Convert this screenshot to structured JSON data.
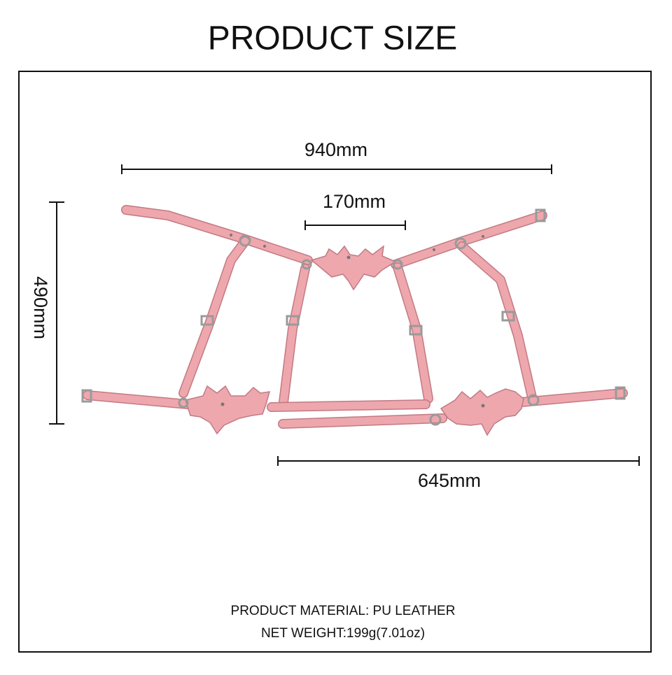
{
  "header": {
    "title": "PRODUCT SIZE"
  },
  "dimensions": {
    "overall_width": "940mm",
    "center_width": "170mm",
    "height": "490mm",
    "bottom_width": "645mm"
  },
  "details": {
    "material": "PRODUCT MATERIAL: PU LEATHER",
    "weight": "NET WEIGHT:199g(7.01oz)"
  }
}
